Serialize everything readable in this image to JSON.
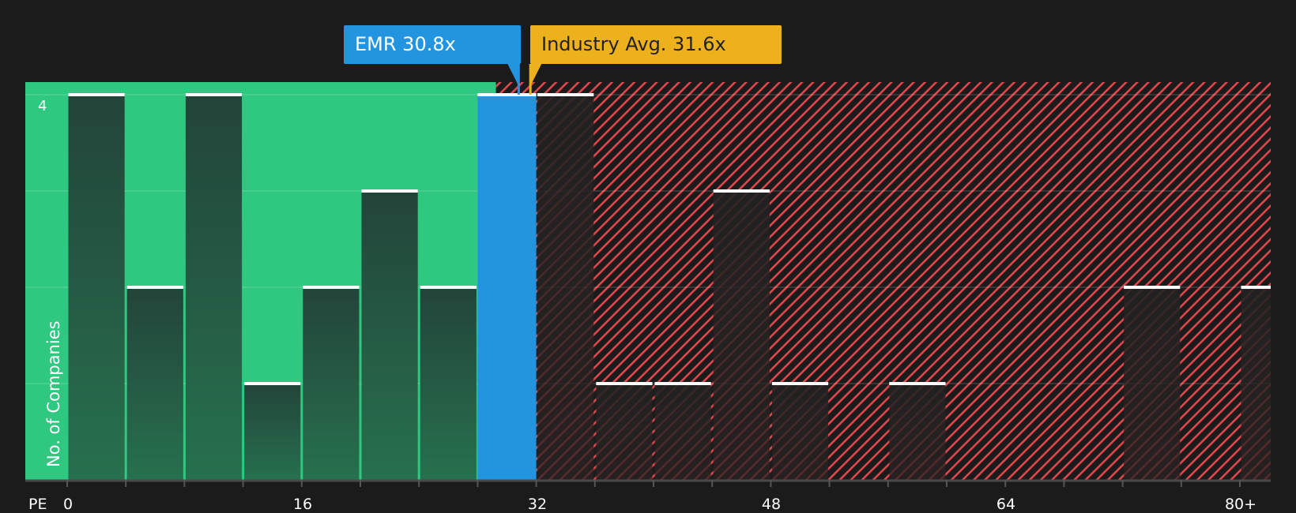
{
  "chart_data": {
    "type": "bar",
    "title": "",
    "xlabel": "PE",
    "ylabel": "No. of Companies",
    "bin_width": 4,
    "categories": [
      "0-4",
      "4-8",
      "8-12",
      "12-16",
      "16-20",
      "20-24",
      "24-28",
      "28-32",
      "32-36",
      "36-40",
      "40-44",
      "44-48",
      "48-52",
      "52-56",
      "56-60",
      "60-64",
      "64-68",
      "68-72",
      "72-76",
      "76-80",
      "80+"
    ],
    "values": [
      4,
      2,
      4,
      1,
      2,
      3,
      2,
      4,
      4,
      1,
      1,
      3,
      1,
      0,
      1,
      0,
      0,
      0,
      2,
      0,
      2
    ],
    "highlight_bin": "28-32",
    "x_ticks": [
      "0",
      "16",
      "32",
      "48",
      "64",
      "80+"
    ],
    "y_ticks": [
      "4"
    ],
    "ylim": [
      0,
      4.15
    ],
    "grid": true,
    "regions": [
      {
        "name": "undervalued",
        "from": 0,
        "to": 31.6,
        "color": "#2ec880"
      },
      {
        "name": "overvalued",
        "from": 31.6,
        "to": 84,
        "color": "#e0474c",
        "pattern": "hatched"
      }
    ],
    "annotations": [
      {
        "label": "EMR 30.8x",
        "value": 30.8,
        "color": "#2394e0"
      },
      {
        "label": "Industry Avg. 31.6x",
        "value": 31.6,
        "color": "#eeb11e"
      }
    ]
  },
  "callouts": {
    "company": "EMR 30.8x",
    "industry": "Industry Avg. 31.6x"
  },
  "axis": {
    "x_title": "PE",
    "y_title": "No. of Companies",
    "y_top_tick": "4",
    "x_ticks": [
      "0",
      "16",
      "32",
      "48",
      "64",
      "80+"
    ]
  },
  "colors": {
    "background": "#1b1b1b",
    "green_region": "#2ec880",
    "bar_green": "#23473a",
    "company_bar": "#2394e0",
    "hatch_red": "#e0474c",
    "industry": "#eeb11e"
  }
}
